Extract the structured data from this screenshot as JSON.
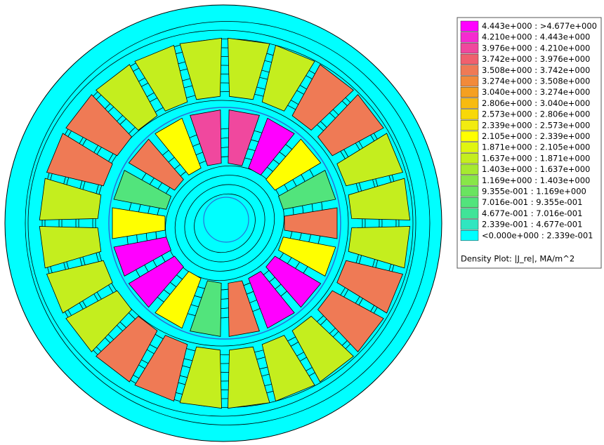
{
  "legend": {
    "entries": [
      {
        "label": "4.443e+000 : >4.677e+000",
        "color": "#ff00ff"
      },
      {
        "label": "4.210e+000 : 4.443e+000",
        "color": "#f52bd0"
      },
      {
        "label": "3.976e+000 : 4.210e+000",
        "color": "#f0489e"
      },
      {
        "label": "3.742e+000 : 3.976e+000",
        "color": "#f0606e"
      },
      {
        "label": "3.508e+000 : 3.742e+000",
        "color": "#ef7a55"
      },
      {
        "label": "3.274e+000 : 3.508e+000",
        "color": "#f28a3a"
      },
      {
        "label": "3.040e+000 : 3.274e+000",
        "color": "#f5a020"
      },
      {
        "label": "2.806e+000 : 3.040e+000",
        "color": "#f8bb10"
      },
      {
        "label": "2.573e+000 : 2.806e+000",
        "color": "#f8d808"
      },
      {
        "label": "2.339e+000 : 2.573e+000",
        "color": "#f2ec10"
      },
      {
        "label": "2.105e+000 : 2.339e+000",
        "color": "#ffff00"
      },
      {
        "label": "1.871e+000 : 2.105e+000",
        "color": "#e0f510"
      },
      {
        "label": "1.637e+000 : 1.871e+000",
        "color": "#c4ee1e"
      },
      {
        "label": "1.403e+000 : 1.637e+000",
        "color": "#a6ea30"
      },
      {
        "label": "1.169e+000 : 1.403e+000",
        "color": "#88e648"
      },
      {
        "label": "9.355e-001 : 1.169e+000",
        "color": "#6ae460"
      },
      {
        "label": "7.016e-001 : 9.355e-001",
        "color": "#52e47c"
      },
      {
        "label": "4.677e-001 : 7.016e-001",
        "color": "#40e498"
      },
      {
        "label": "2.339e-001 : 4.677e-001",
        "color": "#30e6c0"
      },
      {
        "label": "<0.000e+000 : 2.339e-001",
        "color": "#00ffff"
      }
    ],
    "title": "Density Plot: |J_re|, MA/m^2"
  }
}
